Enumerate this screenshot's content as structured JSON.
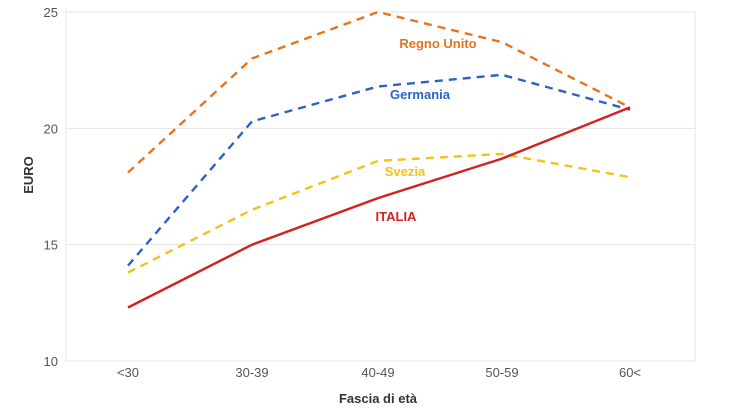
{
  "chart_data": {
    "type": "line",
    "title": "",
    "xlabel": "Fascia di età",
    "ylabel": "EURO",
    "categories": [
      "<30",
      "30-39",
      "40-49",
      "50-59",
      "60<"
    ],
    "ylim": [
      10,
      25
    ],
    "yticks": [
      10,
      15,
      20,
      25
    ],
    "grid": true,
    "series": [
      {
        "name": "Regno Unito",
        "color": "#E8731F",
        "dash": true,
        "values": [
          18.1,
          23.0,
          25.0,
          23.7,
          20.9
        ]
      },
      {
        "name": "Germania",
        "color": "#2B62C9",
        "dash": true,
        "values": [
          14.1,
          20.3,
          21.8,
          22.3,
          20.8
        ]
      },
      {
        "name": "Svezia",
        "color": "#F2C21B",
        "dash": true,
        "values": [
          13.8,
          16.5,
          18.6,
          18.9,
          17.9
        ]
      },
      {
        "name": "ITALIA",
        "color": "#D42020",
        "dash": false,
        "values": [
          12.3,
          15.0,
          17.0,
          18.7,
          20.9
        ]
      }
    ]
  }
}
